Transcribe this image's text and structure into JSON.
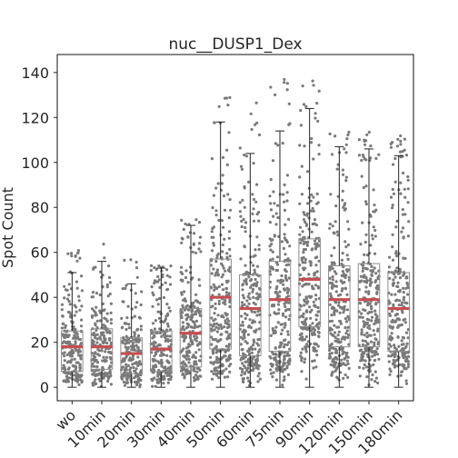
{
  "chart_data": {
    "type": "box-strip",
    "title": "nuc__DUSP1_Dex",
    "xlabel": "",
    "ylabel": "Spot Count",
    "ylim": [
      -6,
      148
    ],
    "yticks": [
      0,
      20,
      40,
      60,
      80,
      100,
      120,
      140
    ],
    "grid": false,
    "legend": "none",
    "categories": [
      "wo",
      "10min",
      "20min",
      "30min",
      "40min",
      "50min",
      "60min",
      "75min",
      "90min",
      "120min",
      "150min",
      "180min"
    ],
    "medians": [
      18,
      18,
      15,
      17,
      24,
      40,
      35,
      39,
      48,
      39,
      39,
      35
    ],
    "q1": [
      7,
      8,
      6,
      7,
      9,
      17,
      14,
      16,
      27,
      18,
      18,
      16
    ],
    "q3": [
      25,
      26,
      22,
      25,
      35,
      57,
      50,
      56,
      66,
      54,
      55,
      51
    ],
    "whisker_low": [
      0,
      0,
      0,
      0,
      0,
      0,
      0,
      0,
      0,
      0,
      0,
      0
    ],
    "whisker_high": [
      51,
      56,
      46,
      53,
      72,
      118,
      104,
      114,
      124,
      107,
      106,
      103
    ],
    "outliers_max": [
      62,
      64,
      63,
      55,
      75,
      131,
      128,
      138,
      141,
      116,
      114,
      112
    ],
    "colors": {
      "points": "#7a7a7a",
      "median": "#c44e52",
      "box": "#8c8c8c",
      "whisker": "#222222",
      "axes": "#262626"
    }
  }
}
